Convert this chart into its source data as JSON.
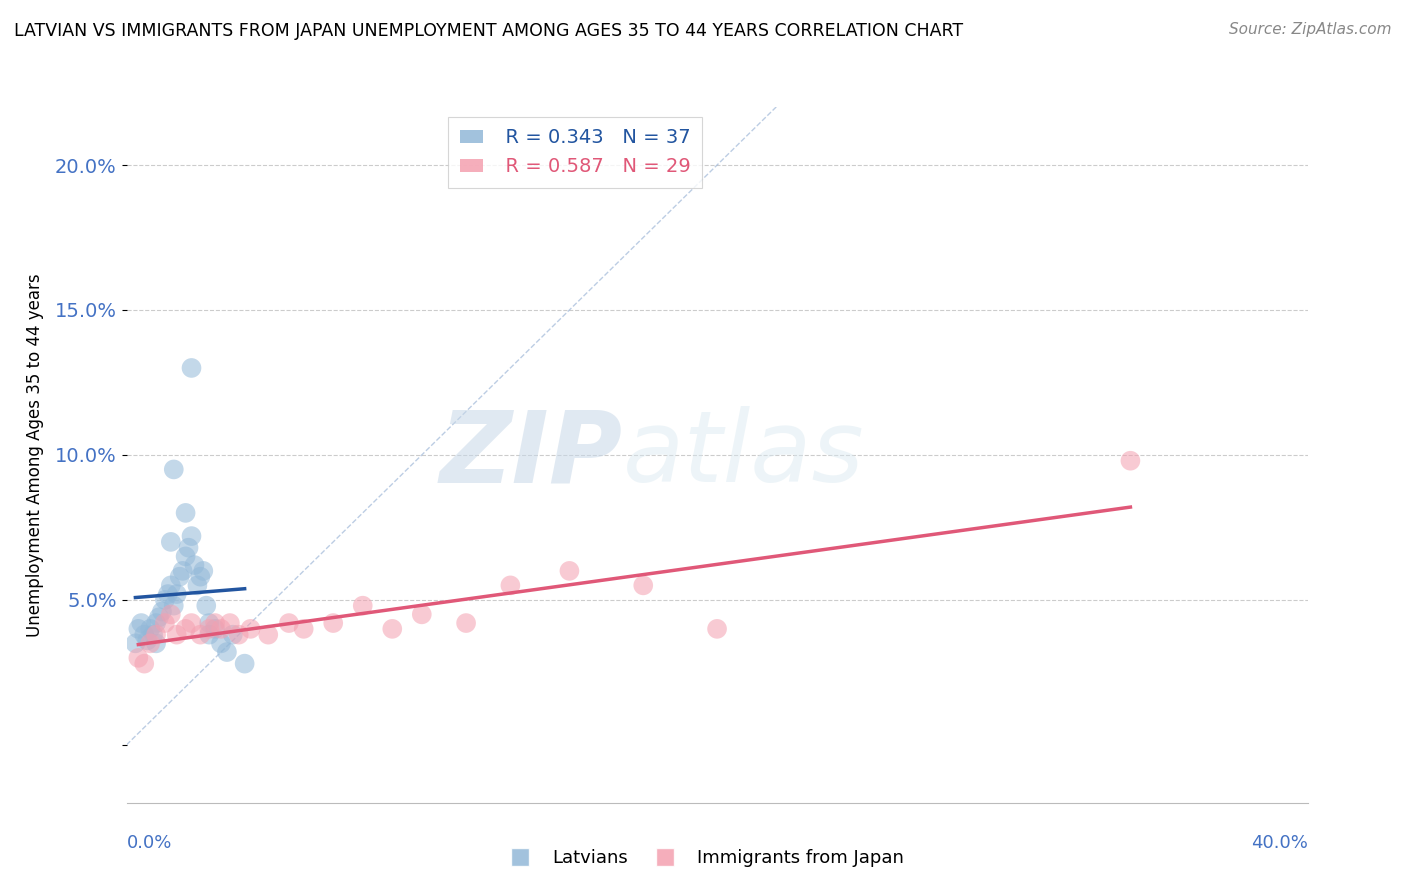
{
  "title": "LATVIAN VS IMMIGRANTS FROM JAPAN UNEMPLOYMENT AMONG AGES 35 TO 44 YEARS CORRELATION CHART",
  "source": "Source: ZipAtlas.com",
  "ylabel": "Unemployment Among Ages 35 to 44 years",
  "xmin": 0.0,
  "xmax": 0.4,
  "ymin": -0.02,
  "ymax": 0.22,
  "yticks": [
    0.0,
    0.05,
    0.1,
    0.15,
    0.2
  ],
  "ytick_labels": [
    "",
    "5.0%",
    "10.0%",
    "15.0%",
    "20.0%"
  ],
  "legend_r1": "R = 0.343",
  "legend_n1": "N = 37",
  "legend_r2": "R = 0.587",
  "legend_n2": "N = 29",
  "color_latvian": "#92b8d8",
  "color_japan": "#f4a0b0",
  "color_latvian_line": "#2255a0",
  "color_japan_line": "#e05878",
  "color_refline": "#a0b8d8",
  "watermark_zip": "ZIP",
  "watermark_atlas": "atlas",
  "latvian_x": [
    0.003,
    0.004,
    0.005,
    0.006,
    0.007,
    0.008,
    0.009,
    0.01,
    0.01,
    0.011,
    0.012,
    0.013,
    0.014,
    0.015,
    0.016,
    0.017,
    0.018,
    0.019,
    0.02,
    0.021,
    0.022,
    0.023,
    0.024,
    0.025,
    0.026,
    0.027,
    0.028,
    0.028,
    0.03,
    0.032,
    0.034,
    0.036,
    0.04,
    0.015,
    0.016,
    0.02,
    0.022
  ],
  "latvian_y": [
    0.035,
    0.04,
    0.042,
    0.038,
    0.036,
    0.04,
    0.038,
    0.042,
    0.035,
    0.044,
    0.046,
    0.05,
    0.052,
    0.055,
    0.048,
    0.052,
    0.058,
    0.06,
    0.065,
    0.068,
    0.072,
    0.062,
    0.055,
    0.058,
    0.06,
    0.048,
    0.042,
    0.038,
    0.04,
    0.035,
    0.032,
    0.038,
    0.028,
    0.07,
    0.095,
    0.08,
    0.13
  ],
  "japan_x": [
    0.004,
    0.006,
    0.008,
    0.01,
    0.013,
    0.015,
    0.017,
    0.02,
    0.022,
    0.025,
    0.028,
    0.03,
    0.032,
    0.035,
    0.038,
    0.042,
    0.048,
    0.055,
    0.06,
    0.07,
    0.08,
    0.09,
    0.1,
    0.115,
    0.13,
    0.15,
    0.175,
    0.34,
    0.2
  ],
  "japan_y": [
    0.03,
    0.028,
    0.035,
    0.038,
    0.042,
    0.045,
    0.038,
    0.04,
    0.042,
    0.038,
    0.04,
    0.042,
    0.04,
    0.042,
    0.038,
    0.04,
    0.038,
    0.042,
    0.04,
    0.042,
    0.048,
    0.04,
    0.045,
    0.042,
    0.055,
    0.06,
    0.055,
    0.098,
    0.04
  ]
}
